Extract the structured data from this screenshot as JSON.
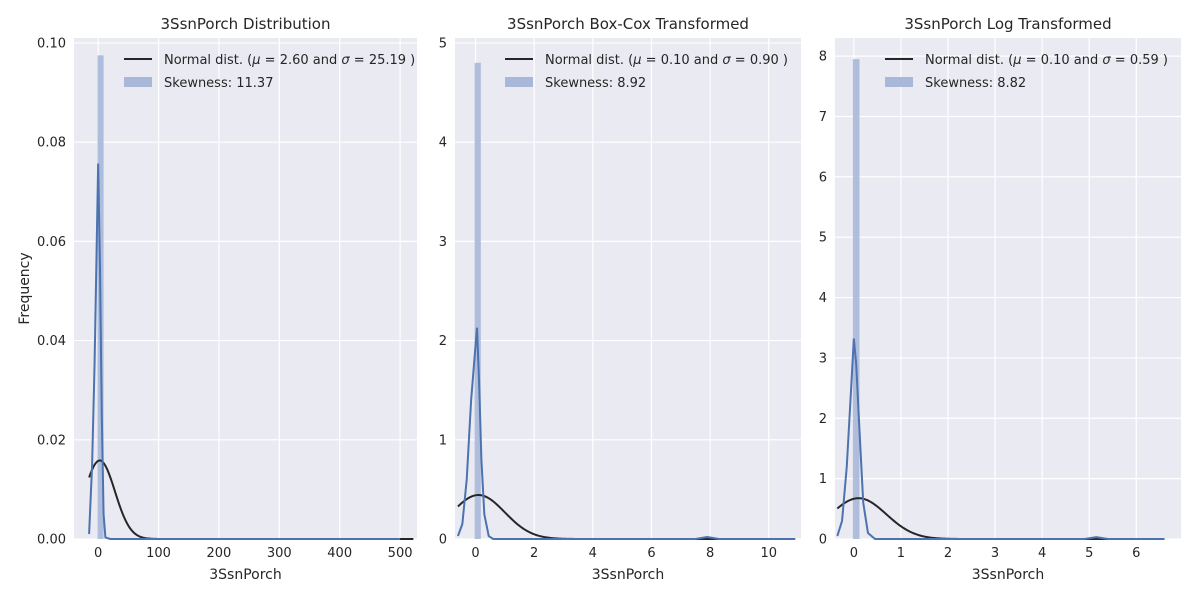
{
  "chart_data": [
    {
      "type": "histogram",
      "title": "3SsnPorch Distribution",
      "xlabel": "3SsnPorch",
      "ylabel": "Frequency",
      "xlim": [
        -40,
        528
      ],
      "ylim": [
        0,
        0.101
      ],
      "xticks": [
        0,
        100,
        200,
        300,
        400,
        500
      ],
      "yticks": [
        0.0,
        0.02,
        0.04,
        0.06,
        0.08,
        0.1
      ],
      "ytick_labels": [
        "0.00",
        "0.02",
        "0.04",
        "0.06",
        "0.08",
        "0.10"
      ],
      "grid": true,
      "legend_placement": "upper-right",
      "legend": [
        {
          "kind": "line",
          "pre": "Normal dist. (",
          "mu_label": "μ",
          "mu_value": "2.60",
          "sigma_label": "σ",
          "sigma_value": "25.19",
          "post": ")"
        },
        {
          "kind": "patch",
          "text": "Skewness: 11.37"
        }
      ],
      "histogram": {
        "bins": [
          {
            "x0": -1,
            "x1": 9,
            "height": 0.0975
          }
        ]
      },
      "kde": [
        [
          -15,
          0.001
        ],
        [
          -10,
          0.015
        ],
        [
          -6,
          0.035
        ],
        [
          -3,
          0.055
        ],
        [
          0,
          0.0757
        ],
        [
          3,
          0.055
        ],
        [
          6,
          0.025
        ],
        [
          9,
          0.005
        ],
        [
          12,
          0.0003
        ],
        [
          20,
          0.0
        ],
        [
          500,
          0.0
        ]
      ],
      "normal_fit": {
        "mu": 2.6,
        "sigma": 25.19,
        "x_start": -15,
        "x_end": 522
      }
    },
    {
      "type": "histogram",
      "title": "3SsnPorch Box-Cox Transformed",
      "xlabel": "3SsnPorch",
      "ylabel": "",
      "xlim": [
        -0.7,
        11.1
      ],
      "ylim": [
        0,
        5.05
      ],
      "xticks": [
        0,
        2,
        4,
        6,
        8,
        10
      ],
      "yticks": [
        0,
        1,
        2,
        3,
        4,
        5
      ],
      "ytick_labels": [
        "0",
        "1",
        "2",
        "3",
        "4",
        "5"
      ],
      "grid": true,
      "legend_placement": "upper-right",
      "legend": [
        {
          "kind": "line",
          "pre": "Normal dist. (",
          "mu_label": "μ",
          "mu_value": "0.10",
          "sigma_label": "σ",
          "sigma_value": "0.90",
          "post": ")"
        },
        {
          "kind": "patch",
          "text": "Skewness: 8.92"
        }
      ],
      "histogram": {
        "bins": [
          {
            "x0": -0.03,
            "x1": 0.18,
            "height": 4.8
          }
        ]
      },
      "kde": [
        [
          -0.6,
          0.03
        ],
        [
          -0.45,
          0.15
        ],
        [
          -0.3,
          0.6
        ],
        [
          -0.15,
          1.4
        ],
        [
          0,
          1.95
        ],
        [
          0.05,
          2.13
        ],
        [
          0.12,
          1.6
        ],
        [
          0.2,
          0.8
        ],
        [
          0.3,
          0.25
        ],
        [
          0.45,
          0.03
        ],
        [
          0.6,
          0.0
        ],
        [
          7.5,
          0.0
        ],
        [
          7.9,
          0.02
        ],
        [
          8.3,
          0.0
        ],
        [
          10.9,
          0.0
        ]
      ],
      "normal_fit": {
        "mu": 0.1,
        "sigma": 0.9,
        "x_start": -0.6,
        "x_end": 10.9
      }
    },
    {
      "type": "histogram",
      "title": "3SsnPorch Log Transformed",
      "xlabel": "3SsnPorch",
      "ylabel": "",
      "xlim": [
        -0.4,
        6.95
      ],
      "ylim": [
        0,
        8.3
      ],
      "xticks": [
        0,
        1,
        2,
        3,
        4,
        5,
        6
      ],
      "yticks": [
        0,
        1,
        2,
        3,
        4,
        5,
        6,
        7,
        8
      ],
      "ytick_labels": [
        "0",
        "1",
        "2",
        "3",
        "4",
        "5",
        "6",
        "7",
        "8"
      ],
      "grid": true,
      "legend_placement": "upper-right",
      "legend": [
        {
          "kind": "line",
          "pre": "Normal dist. (",
          "mu_label": "μ",
          "mu_value": "0.10",
          "sigma_label": "σ",
          "sigma_value": "0.59",
          "post": ")"
        },
        {
          "kind": "patch",
          "text": "Skewness: 8.82"
        }
      ],
      "histogram": {
        "bins": [
          {
            "x0": -0.02,
            "x1": 0.12,
            "height": 7.95
          }
        ]
      },
      "kde": [
        [
          -0.35,
          0.05
        ],
        [
          -0.25,
          0.3
        ],
        [
          -0.15,
          1.2
        ],
        [
          -0.05,
          2.6
        ],
        [
          0,
          3.32
        ],
        [
          0.05,
          2.9
        ],
        [
          0.12,
          1.8
        ],
        [
          0.2,
          0.6
        ],
        [
          0.3,
          0.1
        ],
        [
          0.45,
          0.0
        ],
        [
          4.9,
          0.0
        ],
        [
          5.15,
          0.03
        ],
        [
          5.4,
          0.0
        ],
        [
          6.6,
          0.0
        ]
      ],
      "normal_fit": {
        "mu": 0.1,
        "sigma": 0.59,
        "x_start": -0.35,
        "x_end": 6.6
      }
    }
  ],
  "colors": {
    "background": "#eaeaf2",
    "grid": "#ffffff",
    "text": "#262626",
    "kde": "#4c72b0",
    "hist": "#a9b8d9",
    "normal": "#262626"
  }
}
